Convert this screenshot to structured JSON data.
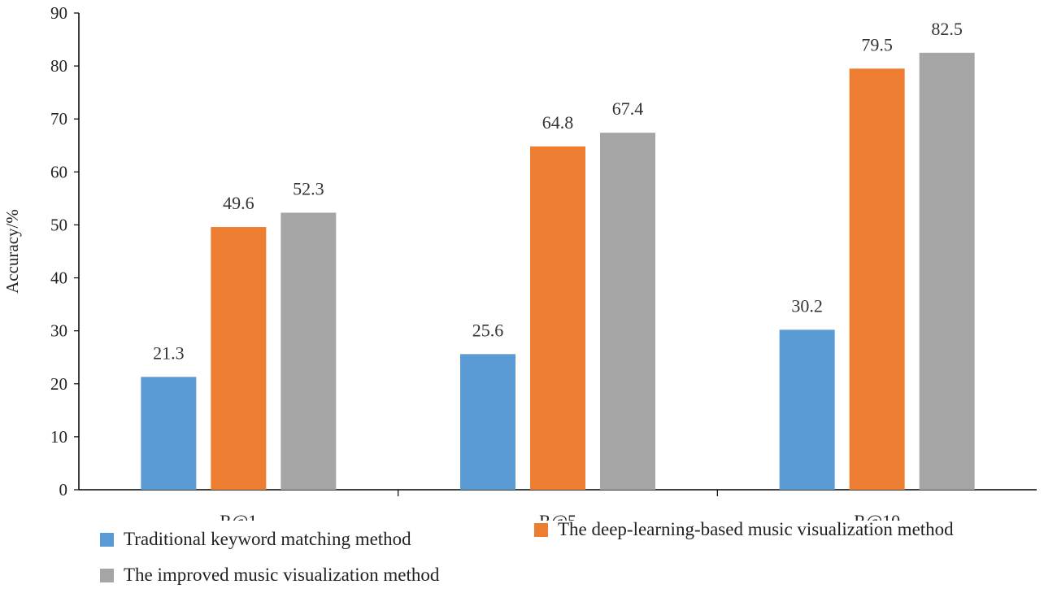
{
  "chart_data": {
    "type": "bar",
    "categories": [
      "R@1",
      "R@5",
      "R@10"
    ],
    "series": [
      {
        "name": "Traditional keyword matching method",
        "values": [
          21.3,
          25.6,
          30.2
        ],
        "color": "#5B9BD5"
      },
      {
        "name": "The deep-learning-based music visualization method",
        "values": [
          49.6,
          64.8,
          79.5
        ],
        "color": "#ED7D31"
      },
      {
        "name": "The improved music visualization method",
        "values": [
          52.3,
          67.4,
          82.5
        ],
        "color": "#A5A5A5"
      }
    ],
    "xlabel": "",
    "ylabel": "Accuracy/%",
    "ylim": [
      0,
      90
    ],
    "yticks": [
      0,
      10,
      20,
      30,
      40,
      50,
      60,
      70,
      80,
      90
    ],
    "grid": false,
    "legend_position": "bottom"
  }
}
